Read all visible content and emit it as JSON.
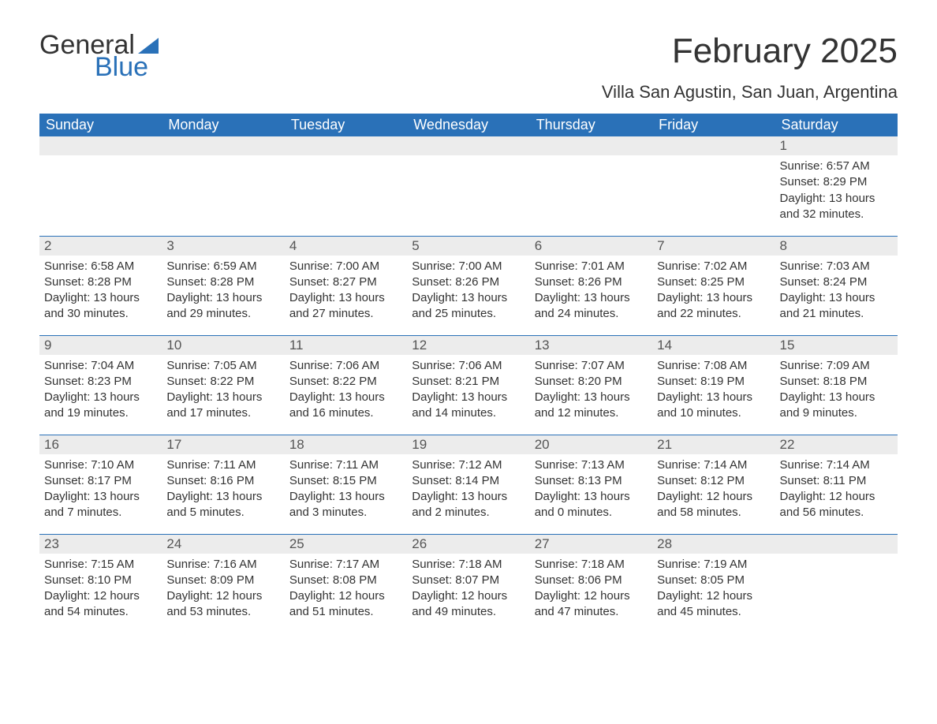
{
  "logo": {
    "text_general": "General",
    "text_blue": "Blue",
    "sail_color": "#2a71b8"
  },
  "title": "February 2025",
  "location": "Villa San Agustin, San Juan, Argentina",
  "colors": {
    "header_bg": "#2a71b8",
    "header_text": "#ffffff",
    "daynum_bg": "#ececec",
    "separator": "#2a71b8",
    "body_text": "#333333",
    "page_bg": "#ffffff"
  },
  "day_headers": [
    "Sunday",
    "Monday",
    "Tuesday",
    "Wednesday",
    "Thursday",
    "Friday",
    "Saturday"
  ],
  "weeks": [
    [
      null,
      null,
      null,
      null,
      null,
      null,
      {
        "n": "1",
        "sunrise": "Sunrise: 6:57 AM",
        "sunset": "Sunset: 8:29 PM",
        "daylight": "Daylight: 13 hours and 32 minutes."
      }
    ],
    [
      {
        "n": "2",
        "sunrise": "Sunrise: 6:58 AM",
        "sunset": "Sunset: 8:28 PM",
        "daylight": "Daylight: 13 hours and 30 minutes."
      },
      {
        "n": "3",
        "sunrise": "Sunrise: 6:59 AM",
        "sunset": "Sunset: 8:28 PM",
        "daylight": "Daylight: 13 hours and 29 minutes."
      },
      {
        "n": "4",
        "sunrise": "Sunrise: 7:00 AM",
        "sunset": "Sunset: 8:27 PM",
        "daylight": "Daylight: 13 hours and 27 minutes."
      },
      {
        "n": "5",
        "sunrise": "Sunrise: 7:00 AM",
        "sunset": "Sunset: 8:26 PM",
        "daylight": "Daylight: 13 hours and 25 minutes."
      },
      {
        "n": "6",
        "sunrise": "Sunrise: 7:01 AM",
        "sunset": "Sunset: 8:26 PM",
        "daylight": "Daylight: 13 hours and 24 minutes."
      },
      {
        "n": "7",
        "sunrise": "Sunrise: 7:02 AM",
        "sunset": "Sunset: 8:25 PM",
        "daylight": "Daylight: 13 hours and 22 minutes."
      },
      {
        "n": "8",
        "sunrise": "Sunrise: 7:03 AM",
        "sunset": "Sunset: 8:24 PM",
        "daylight": "Daylight: 13 hours and 21 minutes."
      }
    ],
    [
      {
        "n": "9",
        "sunrise": "Sunrise: 7:04 AM",
        "sunset": "Sunset: 8:23 PM",
        "daylight": "Daylight: 13 hours and 19 minutes."
      },
      {
        "n": "10",
        "sunrise": "Sunrise: 7:05 AM",
        "sunset": "Sunset: 8:22 PM",
        "daylight": "Daylight: 13 hours and 17 minutes."
      },
      {
        "n": "11",
        "sunrise": "Sunrise: 7:06 AM",
        "sunset": "Sunset: 8:22 PM",
        "daylight": "Daylight: 13 hours and 16 minutes."
      },
      {
        "n": "12",
        "sunrise": "Sunrise: 7:06 AM",
        "sunset": "Sunset: 8:21 PM",
        "daylight": "Daylight: 13 hours and 14 minutes."
      },
      {
        "n": "13",
        "sunrise": "Sunrise: 7:07 AM",
        "sunset": "Sunset: 8:20 PM",
        "daylight": "Daylight: 13 hours and 12 minutes."
      },
      {
        "n": "14",
        "sunrise": "Sunrise: 7:08 AM",
        "sunset": "Sunset: 8:19 PM",
        "daylight": "Daylight: 13 hours and 10 minutes."
      },
      {
        "n": "15",
        "sunrise": "Sunrise: 7:09 AM",
        "sunset": "Sunset: 8:18 PM",
        "daylight": "Daylight: 13 hours and 9 minutes."
      }
    ],
    [
      {
        "n": "16",
        "sunrise": "Sunrise: 7:10 AM",
        "sunset": "Sunset: 8:17 PM",
        "daylight": "Daylight: 13 hours and 7 minutes."
      },
      {
        "n": "17",
        "sunrise": "Sunrise: 7:11 AM",
        "sunset": "Sunset: 8:16 PM",
        "daylight": "Daylight: 13 hours and 5 minutes."
      },
      {
        "n": "18",
        "sunrise": "Sunrise: 7:11 AM",
        "sunset": "Sunset: 8:15 PM",
        "daylight": "Daylight: 13 hours and 3 minutes."
      },
      {
        "n": "19",
        "sunrise": "Sunrise: 7:12 AM",
        "sunset": "Sunset: 8:14 PM",
        "daylight": "Daylight: 13 hours and 2 minutes."
      },
      {
        "n": "20",
        "sunrise": "Sunrise: 7:13 AM",
        "sunset": "Sunset: 8:13 PM",
        "daylight": "Daylight: 13 hours and 0 minutes."
      },
      {
        "n": "21",
        "sunrise": "Sunrise: 7:14 AM",
        "sunset": "Sunset: 8:12 PM",
        "daylight": "Daylight: 12 hours and 58 minutes."
      },
      {
        "n": "22",
        "sunrise": "Sunrise: 7:14 AM",
        "sunset": "Sunset: 8:11 PM",
        "daylight": "Daylight: 12 hours and 56 minutes."
      }
    ],
    [
      {
        "n": "23",
        "sunrise": "Sunrise: 7:15 AM",
        "sunset": "Sunset: 8:10 PM",
        "daylight": "Daylight: 12 hours and 54 minutes."
      },
      {
        "n": "24",
        "sunrise": "Sunrise: 7:16 AM",
        "sunset": "Sunset: 8:09 PM",
        "daylight": "Daylight: 12 hours and 53 minutes."
      },
      {
        "n": "25",
        "sunrise": "Sunrise: 7:17 AM",
        "sunset": "Sunset: 8:08 PM",
        "daylight": "Daylight: 12 hours and 51 minutes."
      },
      {
        "n": "26",
        "sunrise": "Sunrise: 7:18 AM",
        "sunset": "Sunset: 8:07 PM",
        "daylight": "Daylight: 12 hours and 49 minutes."
      },
      {
        "n": "27",
        "sunrise": "Sunrise: 7:18 AM",
        "sunset": "Sunset: 8:06 PM",
        "daylight": "Daylight: 12 hours and 47 minutes."
      },
      {
        "n": "28",
        "sunrise": "Sunrise: 7:19 AM",
        "sunset": "Sunset: 8:05 PM",
        "daylight": "Daylight: 12 hours and 45 minutes."
      },
      null
    ]
  ]
}
